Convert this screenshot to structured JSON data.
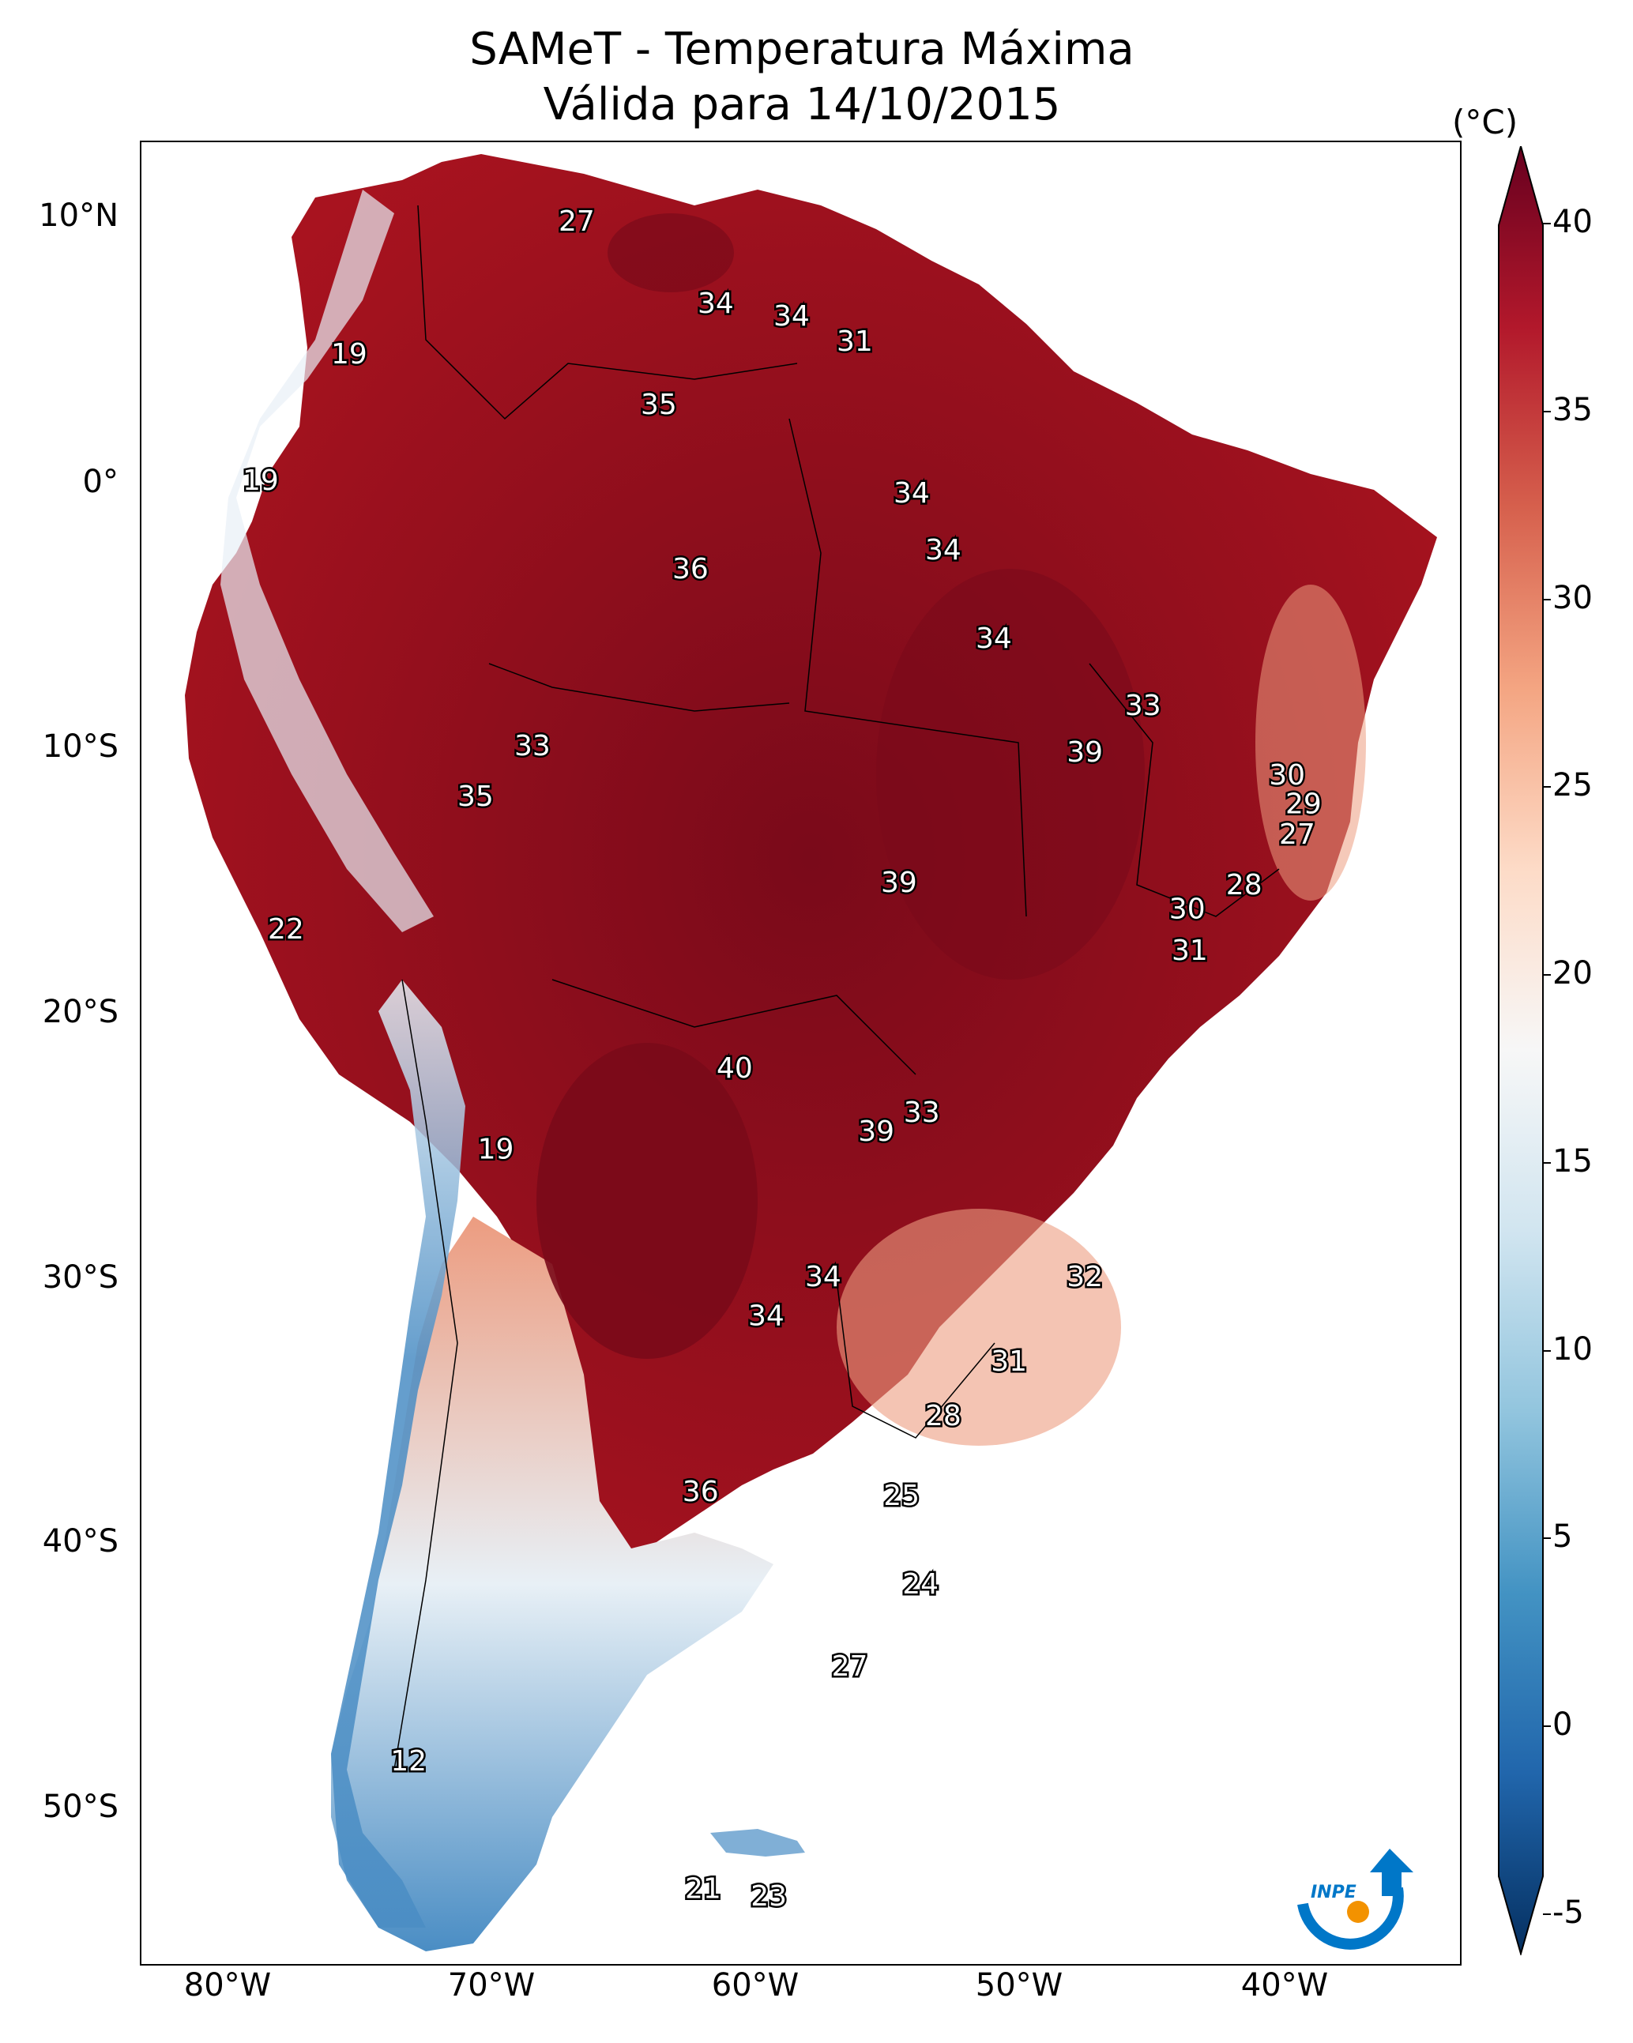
{
  "title": {
    "line1": "SAMeT - Temperatura Máxima",
    "line2": "Válida para 14/10/2015"
  },
  "axes": {
    "lat_labels": [
      "10°N",
      "0°",
      "10°S",
      "20°S",
      "30°S",
      "40°S",
      "50°S"
    ],
    "lon_labels": [
      "80°W",
      "70°W",
      "60°W",
      "50°W",
      "40°W"
    ]
  },
  "colorbar": {
    "unit": "(°C)",
    "ticks": [
      "40",
      "35",
      "30",
      "25",
      "20",
      "15",
      "10",
      "5",
      "0",
      "-5"
    ],
    "range": [
      -5,
      40
    ],
    "colors": [
      "#053061",
      "#2166ac",
      "#4393c3",
      "#92c5de",
      "#d1e5f0",
      "#f7f7f7",
      "#fddbc7",
      "#f4a582",
      "#d6604d",
      "#b2182b",
      "#67001f"
    ]
  },
  "logo": {
    "text": "INPE",
    "color": "#0077c8",
    "accent": "#f39200"
  },
  "map": {
    "background": "#ffffff",
    "border_color": "#000000",
    "hot_color": "#a8131f",
    "hottest_color": "#7a0a1a",
    "warm_color": "#ec9c80",
    "cool_color": "#e8f0f6",
    "cold_color": "#4a8dc4",
    "station_values": [
      {
        "name": "27-north",
        "label": "27"
      },
      {
        "name": "34-guyana",
        "label": "34"
      },
      {
        "name": "34-suriname",
        "label": "34"
      },
      {
        "name": "31-fguiana",
        "label": "31"
      },
      {
        "name": "19-colombia",
        "label": "19"
      },
      {
        "name": "35-roraima",
        "label": "35"
      },
      {
        "name": "19-ecuador",
        "label": "19"
      },
      {
        "name": "34-amapa",
        "label": "34"
      },
      {
        "name": "34-para",
        "label": "34"
      },
      {
        "name": "34-maranhao",
        "label": "34"
      },
      {
        "name": "36-amazonas",
        "label": "36"
      },
      {
        "name": "33-ceara",
        "label": "33"
      },
      {
        "name": "39-piaui",
        "label": "39"
      },
      {
        "name": "30-rn",
        "label": "30"
      },
      {
        "name": "29-paraiba",
        "label": "29"
      },
      {
        "name": "27-pernambuco",
        "label": "27"
      },
      {
        "name": "33-acre",
        "label": "33"
      },
      {
        "name": "35-acre",
        "label": "35"
      },
      {
        "name": "39-tocantins",
        "label": "39"
      },
      {
        "name": "28-alagoas",
        "label": "28"
      },
      {
        "name": "30-sergipe",
        "label": "30"
      },
      {
        "name": "22-peru",
        "label": "22"
      },
      {
        "name": "31-bahia",
        "label": "31"
      },
      {
        "name": "40-matogrosso",
        "label": "40"
      },
      {
        "name": "33-goias",
        "label": "33"
      },
      {
        "name": "39-goias",
        "label": "39"
      },
      {
        "name": "19-bolivia",
        "label": "19"
      },
      {
        "name": "34-minas",
        "label": "34"
      },
      {
        "name": "32-es",
        "label": "32"
      },
      {
        "name": "34-ms",
        "label": "34"
      },
      {
        "name": "31-rj",
        "label": "31"
      },
      {
        "name": "28-sp",
        "label": "28"
      },
      {
        "name": "36-paraguay",
        "label": "36"
      },
      {
        "name": "25-parana",
        "label": "25"
      },
      {
        "name": "24-sc",
        "label": "24"
      },
      {
        "name": "27-rs",
        "label": "27"
      },
      {
        "name": "12-chile",
        "label": "12"
      },
      {
        "name": "21-argentina",
        "label": "21"
      },
      {
        "name": "23-uruguay",
        "label": "23"
      }
    ]
  }
}
